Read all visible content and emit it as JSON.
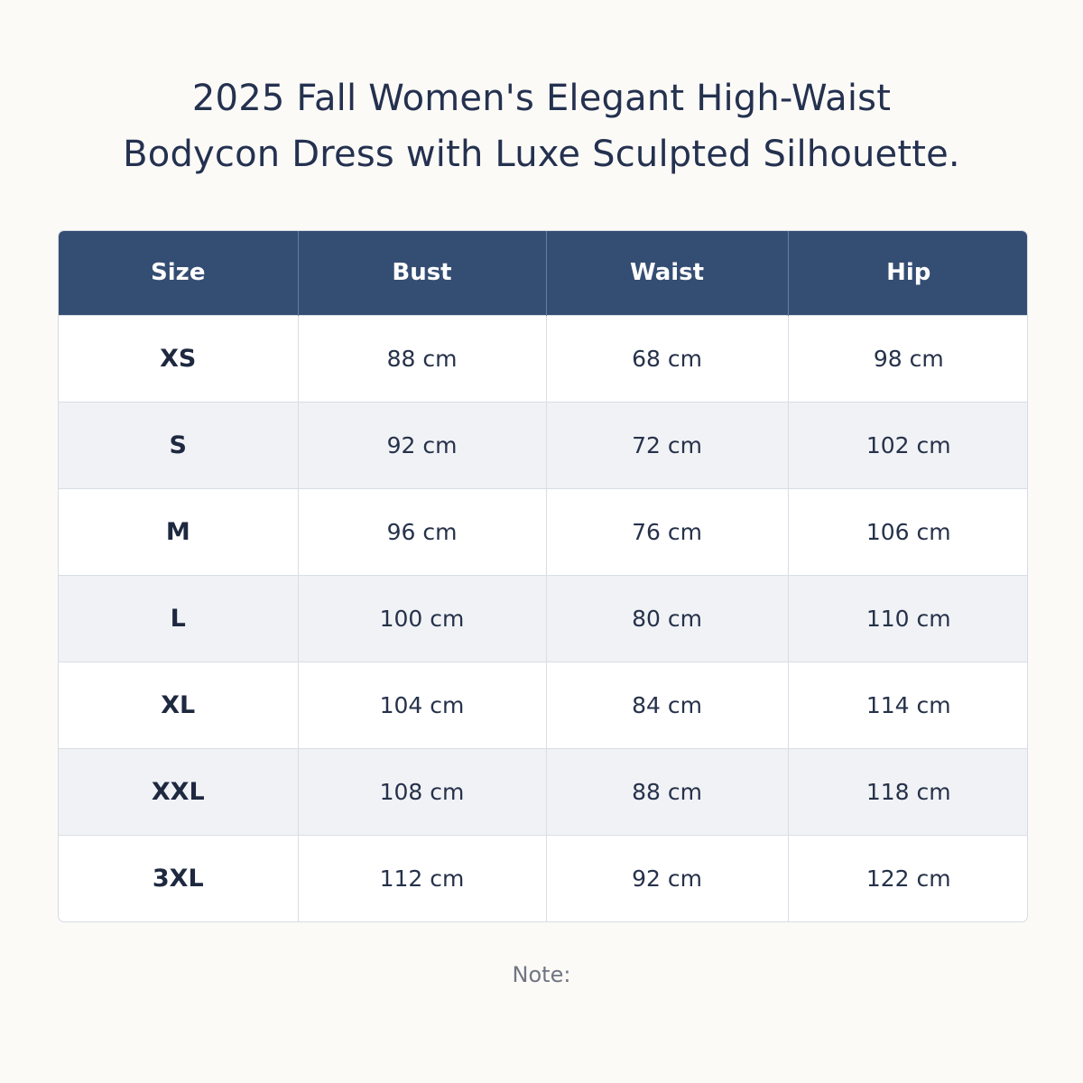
{
  "title": {
    "line1": "2025 Fall Women's Elegant High-Waist",
    "line2": "Bodycon Dress with Luxe Sculpted Silhouette."
  },
  "table": {
    "headers": [
      "Size",
      "Bust",
      "Waist",
      "Hip"
    ],
    "rows": [
      [
        "XS",
        "88 cm",
        "68 cm",
        "98 cm"
      ],
      [
        "S",
        "92 cm",
        "72 cm",
        "102 cm"
      ],
      [
        "M",
        "96 cm",
        "76 cm",
        "106 cm"
      ],
      [
        "L",
        "100 cm",
        "80 cm",
        "110 cm"
      ],
      [
        "XL",
        "104 cm",
        "84 cm",
        "114 cm"
      ],
      [
        "XXL",
        "108 cm",
        "88 cm",
        "118 cm"
      ],
      [
        "3XL",
        "112 cm",
        "92 cm",
        "122 cm"
      ]
    ]
  },
  "note": "Note:",
  "colors": {
    "background": "#fbfaf7",
    "header": "#344d73",
    "alternate_row": "#f1f2f6",
    "text": "#24314f"
  }
}
